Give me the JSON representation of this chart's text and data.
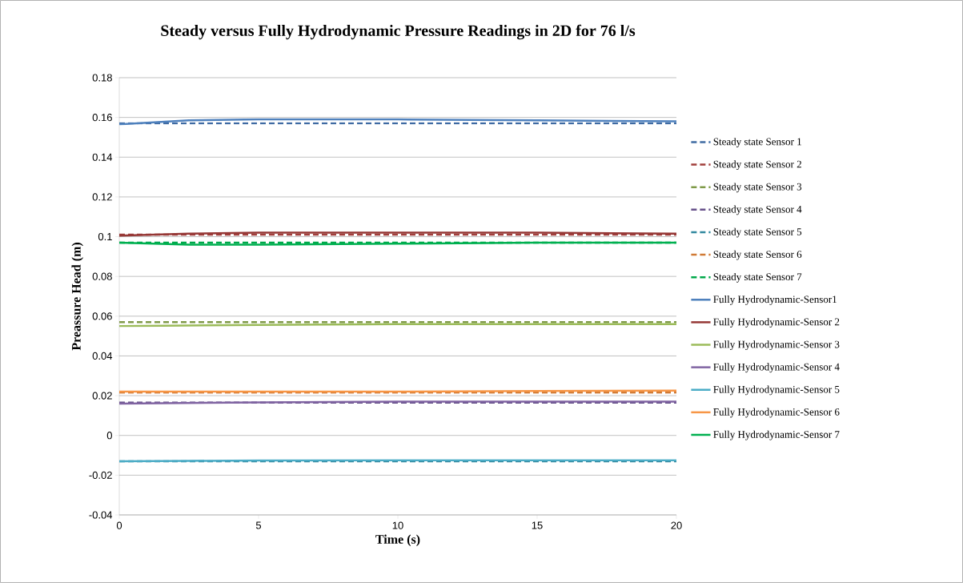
{
  "chart_data": {
    "type": "line",
    "title": "Steady versus Fully Hydrodynamic  Pressure Readings in 2D for 76 l/s",
    "xlabel": "Time (s)",
    "ylabel": "Preassure Head (m)",
    "xlim": [
      0,
      20
    ],
    "ylim": [
      -0.04,
      0.18
    ],
    "xticks": [
      0,
      5,
      10,
      15,
      20
    ],
    "yticks": [
      {
        "value": -0.04,
        "label": "-0.04"
      },
      {
        "value": -0.02,
        "label": "-0.02"
      },
      {
        "value": 0,
        "label": "0"
      },
      {
        "value": 0.02,
        "label": "0.02"
      },
      {
        "value": 0.04,
        "label": "0.04"
      },
      {
        "value": 0.06,
        "label": "0.06"
      },
      {
        "value": 0.08,
        "label": "0.08"
      },
      {
        "value": 0.1,
        "label": "0.1"
      },
      {
        "value": 0.12,
        "label": "0.12"
      },
      {
        "value": 0.14,
        "label": "0.14"
      },
      {
        "value": 0.16,
        "label": "0.16"
      },
      {
        "value": 0.18,
        "label": "0.18"
      }
    ],
    "grid": "y",
    "legend": "right",
    "series": [
      {
        "name": "Steady state Sensor 1",
        "color": "#3f6ba3",
        "line_style": "dashed",
        "x": [
          0,
          20
        ],
        "values": [
          0.157,
          0.157
        ]
      },
      {
        "name": "Steady state Sensor 2",
        "color": "#a13f3c",
        "line_style": "dashed",
        "x": [
          0,
          20
        ],
        "values": [
          0.101,
          0.101
        ]
      },
      {
        "name": "Steady state Sensor 3",
        "color": "#7f9a48",
        "line_style": "dashed",
        "x": [
          0,
          20
        ],
        "values": [
          0.057,
          0.057
        ]
      },
      {
        "name": "Steady state Sensor 4",
        "color": "#66508a",
        "line_style": "dashed",
        "x": [
          0,
          20
        ],
        "values": [
          0.0165,
          0.0165
        ]
      },
      {
        "name": "Steady state Sensor 5",
        "color": "#31889f",
        "line_style": "dashed",
        "x": [
          0,
          20
        ],
        "values": [
          -0.013,
          -0.013
        ]
      },
      {
        "name": "Steady state Sensor 6",
        "color": "#d07a35",
        "line_style": "dashed",
        "x": [
          0,
          20
        ],
        "values": [
          0.0215,
          0.0215
        ]
      },
      {
        "name": "Steady state Sensor 7",
        "color": "#00a84a",
        "line_style": "dashed",
        "x": [
          0,
          20
        ],
        "values": [
          0.097,
          0.097
        ]
      },
      {
        "name": "Fully Hydrodynamic-Sensor1",
        "color": "#4f81bd",
        "line_style": "solid",
        "x": [
          0,
          2.5,
          5,
          10,
          15,
          20
        ],
        "values": [
          0.1565,
          0.1585,
          0.159,
          0.159,
          0.1585,
          0.158
        ]
      },
      {
        "name": "Fully Hydrodynamic-Sensor 2",
        "color": "#953735",
        "line_style": "solid",
        "x": [
          0,
          2.5,
          5,
          10,
          15,
          20
        ],
        "values": [
          0.1005,
          0.1015,
          0.102,
          0.102,
          0.102,
          0.1015
        ]
      },
      {
        "name": "Fully Hydrodynamic-Sensor 3",
        "color": "#9bbb59",
        "line_style": "solid",
        "x": [
          0,
          2.5,
          5,
          10,
          15,
          20
        ],
        "values": [
          0.055,
          0.0553,
          0.0556,
          0.056,
          0.056,
          0.056
        ]
      },
      {
        "name": "Fully Hydrodynamic-Sensor 4",
        "color": "#8064a2",
        "line_style": "solid",
        "x": [
          0,
          2.5,
          5,
          10,
          15,
          20
        ],
        "values": [
          0.016,
          0.0163,
          0.0166,
          0.017,
          0.017,
          0.017
        ]
      },
      {
        "name": "Fully Hydrodynamic-Sensor 5",
        "color": "#4bacc6",
        "line_style": "solid",
        "x": [
          0,
          2.5,
          5,
          10,
          15,
          20
        ],
        "values": [
          -0.013,
          -0.0128,
          -0.0126,
          -0.0125,
          -0.0125,
          -0.0125
        ]
      },
      {
        "name": "Fully Hydrodynamic-Sensor 6",
        "color": "#f79646",
        "line_style": "solid",
        "x": [
          0,
          2.5,
          5,
          10,
          15,
          20
        ],
        "values": [
          0.022,
          0.022,
          0.022,
          0.022,
          0.0223,
          0.0225
        ]
      },
      {
        "name": "Fully Hydrodynamic-Sensor 7",
        "color": "#00b050",
        "line_style": "solid",
        "x": [
          0,
          2.5,
          5,
          10,
          15,
          20
        ],
        "values": [
          0.097,
          0.096,
          0.096,
          0.0965,
          0.097,
          0.097
        ]
      }
    ]
  }
}
